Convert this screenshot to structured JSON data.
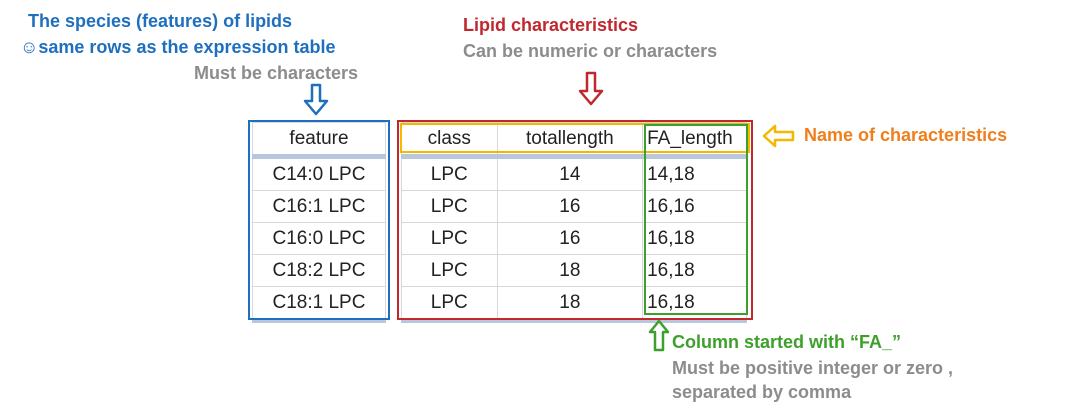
{
  "annotations": {
    "species_title": "The species (features) of lipids",
    "species_smiley": "☺",
    "species_sub": "same rows as the expression table",
    "species_note": "Must be characters",
    "lipid_title": "Lipid characteristics",
    "lipid_note": "Can be numeric or characters",
    "name_char": "Name of characteristics",
    "fa_title": "Column started with “FA_”",
    "fa_note1": "Must be positive integer or zero ,",
    "fa_note2": "separated by comma"
  },
  "feature_table": {
    "header": "feature",
    "rows": [
      "C14:0 LPC",
      "C16:1 LPC",
      "C16:0 LPC",
      "C18:2 LPC",
      "C18:1 LPC"
    ]
  },
  "char_table": {
    "headers": [
      "class",
      "totallength",
      "FA_length"
    ],
    "rows": [
      [
        "LPC",
        "14",
        "14,18"
      ],
      [
        "LPC",
        "16",
        "16,16"
      ],
      [
        "LPC",
        "16",
        "16,18"
      ],
      [
        "LPC",
        "18",
        "16,18"
      ],
      [
        "LPC",
        "18",
        "16,18"
      ]
    ]
  },
  "colors": {
    "blue": "#1f6fbf",
    "red": "#c0282d",
    "orange": "#f5b800",
    "green": "#3ea02c",
    "gray": "#8c8c8c"
  }
}
